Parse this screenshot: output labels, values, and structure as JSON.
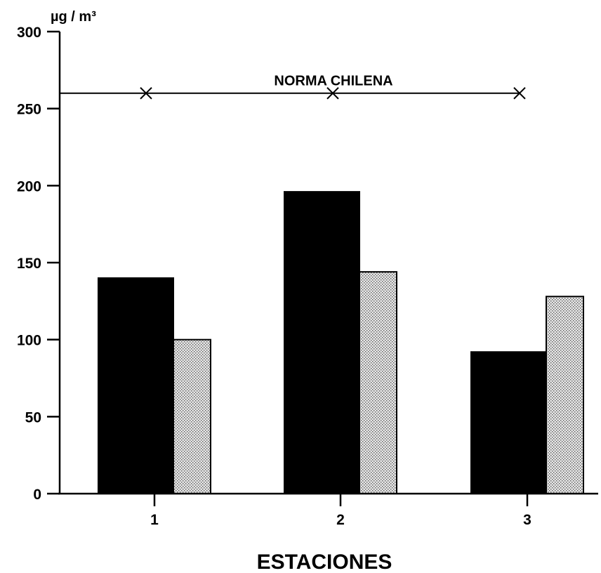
{
  "chart_data": {
    "type": "bar",
    "title": "",
    "xlabel": "ESTACIONES",
    "ylabel": "µg / m³",
    "ylim": [
      0,
      300
    ],
    "yticks": [
      0,
      50,
      100,
      150,
      200,
      250,
      300
    ],
    "categories": [
      "1",
      "2",
      "3"
    ],
    "series": [
      {
        "values": [
          140,
          196,
          92
        ],
        "color": "#000000",
        "fill": "solid"
      },
      {
        "values": [
          100,
          144,
          128
        ],
        "color": "#c8c8c8",
        "fill": "stippled"
      }
    ],
    "reference_line": {
      "label": "NORMA CHILENA",
      "value": 260,
      "marker": "x"
    },
    "grid": false,
    "legend": "none"
  }
}
